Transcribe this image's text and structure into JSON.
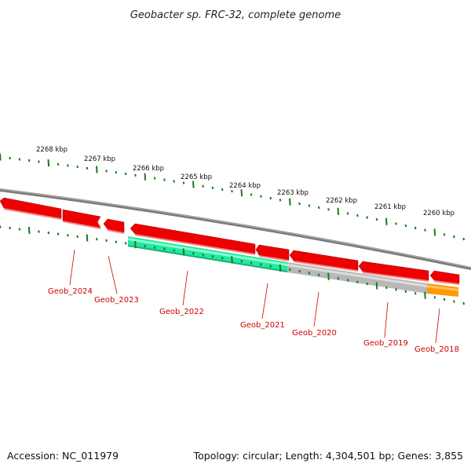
{
  "title": "Geobacter sp. FRC-32, complete genome",
  "footer": {
    "accession": "Accession: NC_011979",
    "summary": "Topology: circular; Length: 4,304,501 bp; Genes: 3,855"
  },
  "scale_labels": [
    "2268 kbp",
    "2267 kbp",
    "2266 kbp",
    "2265 kbp",
    "2264 kbp",
    "2263 kbp",
    "2262 kbp",
    "2261 kbp",
    "2260 kbp"
  ],
  "gene_labels": [
    "Geob_2024",
    "Geob_2023",
    "Geob_2022",
    "Geob_2021",
    "Geob_2020",
    "Geob_2019",
    "Geob_2018"
  ],
  "colors": {
    "forward_gene": "#ee0000",
    "reverse_gene_highlight": "#22e0a0",
    "reverse_gene_grey": "#b8b8b8",
    "reverse_gene_orange": "#ff9900",
    "backbone": "#808080",
    "tick": "#1a7a1a",
    "label": "#cc0000"
  }
}
